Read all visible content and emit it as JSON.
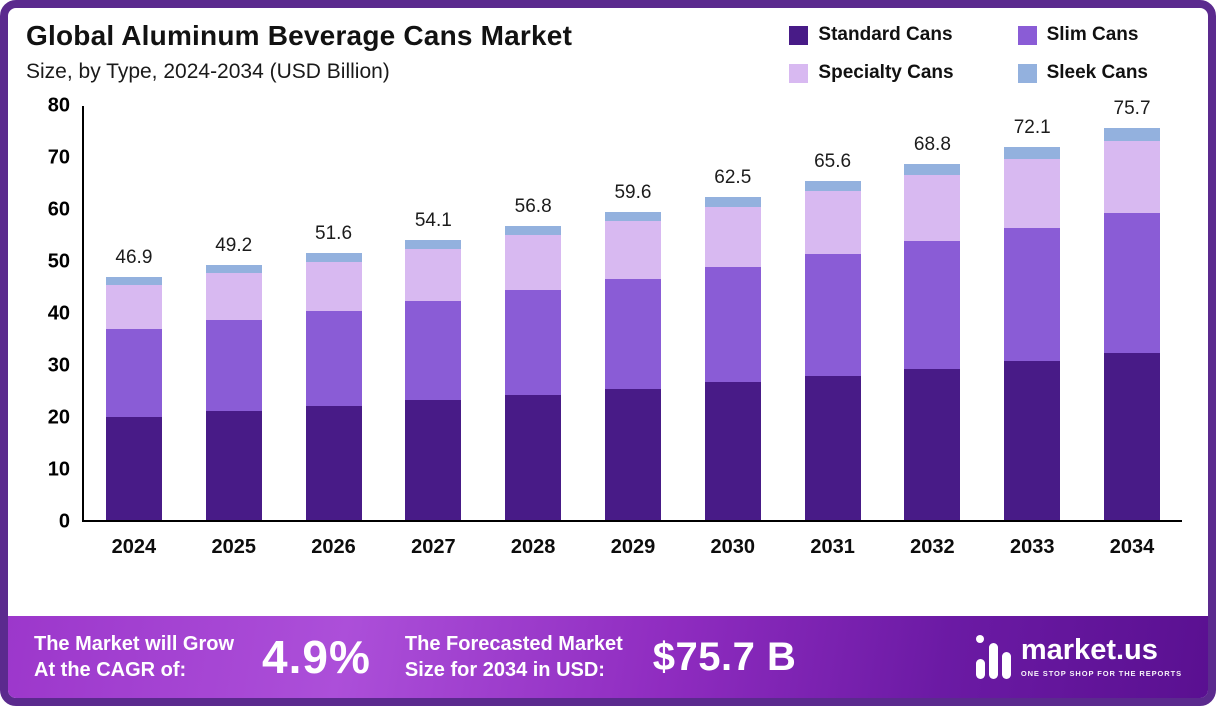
{
  "header": {
    "title": "Global Aluminum Beverage Cans Market",
    "subtitle": "Size, by Type, 2024-2034 (USD Billion)"
  },
  "chart_data": {
    "type": "bar",
    "stacked": true,
    "title": "Global Aluminum Beverage Cans Market",
    "subtitle": "Size, by Type, 2024-2034 (USD Billion)",
    "categories": [
      "2024",
      "2025",
      "2026",
      "2027",
      "2028",
      "2029",
      "2030",
      "2031",
      "2032",
      "2033",
      "2034"
    ],
    "series": [
      {
        "name": "Standard Cans",
        "color": "#481b87",
        "values": [
          20.0,
          21.0,
          22.0,
          23.1,
          24.2,
          25.4,
          26.6,
          27.9,
          29.2,
          30.7,
          32.2
        ]
      },
      {
        "name": "Slim Cans",
        "color": "#8a5cd6",
        "values": [
          17.0,
          17.7,
          18.4,
          19.2,
          20.2,
          21.2,
          22.3,
          23.5,
          24.7,
          25.8,
          27.1
        ]
      },
      {
        "name": "Specialty Cans",
        "color": "#d8b9f1",
        "values": [
          8.5,
          9.0,
          9.5,
          10.1,
          10.6,
          11.1,
          11.6,
          12.1,
          12.7,
          13.3,
          13.9
        ]
      },
      {
        "name": "Sleek Cans",
        "color": "#93b1de",
        "values": [
          1.4,
          1.5,
          1.7,
          1.7,
          1.8,
          1.9,
          2.0,
          2.1,
          2.2,
          2.3,
          2.5
        ]
      }
    ],
    "totals": [
      46.9,
      49.2,
      51.6,
      54.1,
      56.8,
      59.6,
      62.5,
      65.6,
      68.8,
      72.1,
      75.7
    ],
    "ylim": [
      0,
      80
    ],
    "yticks": [
      0,
      10,
      20,
      30,
      40,
      50,
      60,
      70,
      80
    ],
    "legend_position": "top-right",
    "grid": false
  },
  "banner": {
    "cagr_label_line1": "The Market will Grow",
    "cagr_label_line2": "At the CAGR of:",
    "cagr_value": "4.9%",
    "forecast_label_line1": "The Forecasted Market",
    "forecast_label_line2": "Size for 2034 in USD:",
    "forecast_value": "$75.7 B",
    "logo_text": "market.us",
    "logo_tagline": "ONE STOP SHOP FOR THE REPORTS"
  }
}
